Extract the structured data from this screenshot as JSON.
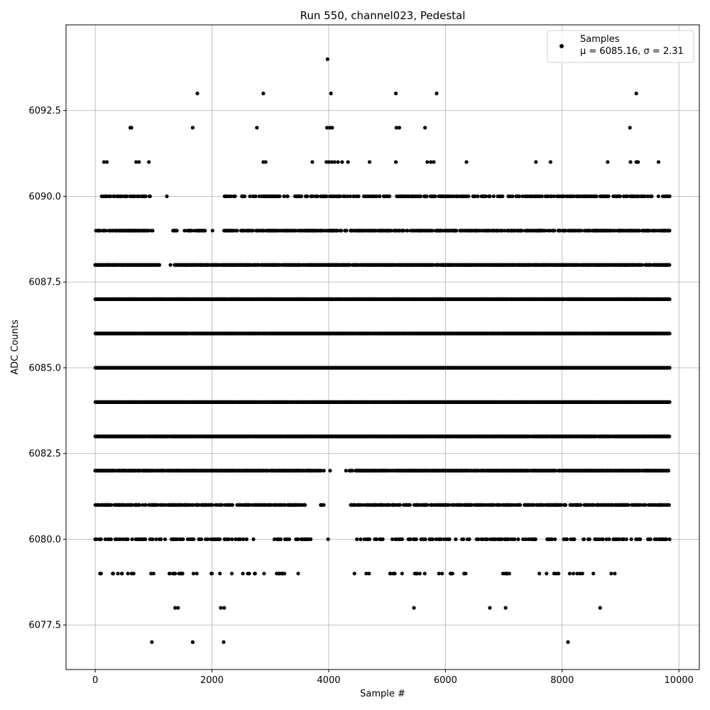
{
  "chart_data": {
    "type": "scatter",
    "title": "Run 550, channel023, Pedestal",
    "xlabel": "Sample #",
    "ylabel": "ADC Counts",
    "xlim": [
      -500,
      10350
    ],
    "ylim": [
      6076.2,
      6095.0
    ],
    "grid": true,
    "legend_position": "top-right",
    "x_ticks": [
      "0",
      "2000",
      "4000",
      "6000",
      "8000",
      "10000"
    ],
    "y_ticks": [
      "6077.5",
      "6080.0",
      "6082.5",
      "6085.0",
      "6087.5",
      "6090.0",
      "6092.5"
    ],
    "marker_color": "#000000",
    "series": [
      {
        "name": "Samples",
        "legend_line2": "μ = 6085.16, σ = 2.31",
        "mean": 6085.16,
        "std": 2.31,
        "x_range": [
          0,
          9840
        ],
        "points": [
          [
            3980,
            6094
          ],
          [
            1750,
            6093
          ],
          [
            2880,
            6093
          ],
          [
            4040,
            6093
          ],
          [
            5150,
            6093
          ],
          [
            5850,
            6093
          ],
          [
            9270,
            6093
          ],
          [
            600,
            6092
          ],
          [
            620,
            6092
          ],
          [
            1670,
            6092
          ],
          [
            2770,
            6092
          ],
          [
            3970,
            6092
          ],
          [
            4020,
            6092
          ],
          [
            4060,
            6092
          ],
          [
            5160,
            6092
          ],
          [
            5210,
            6092
          ],
          [
            5650,
            6092
          ],
          [
            9160,
            6092
          ],
          [
            150,
            6091
          ],
          [
            200,
            6091
          ],
          [
            700,
            6091
          ],
          [
            750,
            6091
          ],
          [
            920,
            6091
          ],
          [
            2880,
            6091
          ],
          [
            2920,
            6091
          ],
          [
            3720,
            6091
          ],
          [
            3960,
            6091
          ],
          [
            4000,
            6091
          ],
          [
            4050,
            6091
          ],
          [
            4100,
            6091
          ],
          [
            4160,
            6091
          ],
          [
            4230,
            6091
          ],
          [
            4330,
            6091
          ],
          [
            4700,
            6091
          ],
          [
            5150,
            6091
          ],
          [
            5690,
            6091
          ],
          [
            5750,
            6091
          ],
          [
            5800,
            6091
          ],
          [
            6360,
            6091
          ],
          [
            7550,
            6091
          ],
          [
            7800,
            6091
          ],
          [
            8780,
            6091
          ],
          [
            9170,
            6091
          ],
          [
            9270,
            6091
          ],
          [
            9300,
            6091
          ],
          [
            9650,
            6091
          ],
          [
            970,
            6077
          ],
          [
            1670,
            6077
          ],
          [
            2200,
            6077
          ],
          [
            8100,
            6077
          ],
          [
            1370,
            6078
          ],
          [
            1420,
            6078
          ],
          [
            2150,
            6078
          ],
          [
            2210,
            6078
          ],
          [
            5460,
            6078
          ],
          [
            6760,
            6078
          ],
          [
            7030,
            6078
          ],
          [
            8650,
            6078
          ]
        ],
        "dense_levels": [
          {
            "y": 6090,
            "density": 0.35,
            "x_from": 100,
            "x_to": 9840,
            "gaps": [
              [
                1000,
                2200
              ]
            ]
          },
          {
            "y": 6089,
            "density": 0.55,
            "x_from": 0,
            "x_to": 9840,
            "gaps": [
              [
                1000,
                1300
              ],
              [
                1400,
                1600
              ],
              [
                1900,
                2200
              ]
            ]
          },
          {
            "y": 6088,
            "density": 0.75,
            "x_from": 0,
            "x_to": 9840,
            "gaps": [
              [
                1100,
                1350
              ]
            ]
          },
          {
            "y": 6087,
            "density": 0.92,
            "x_from": 0,
            "x_to": 9840,
            "gaps": []
          },
          {
            "y": 6086,
            "density": 0.98,
            "x_from": 0,
            "x_to": 9840,
            "gaps": []
          },
          {
            "y": 6085,
            "density": 1.0,
            "x_from": 0,
            "x_to": 9840,
            "gaps": []
          },
          {
            "y": 6084,
            "density": 0.98,
            "x_from": 0,
            "x_to": 9840,
            "gaps": []
          },
          {
            "y": 6083,
            "density": 0.92,
            "x_from": 0,
            "x_to": 9840,
            "gaps": []
          },
          {
            "y": 6082,
            "density": 0.7,
            "x_from": 0,
            "x_to": 9840,
            "gaps": [
              [
                3900,
                4350
              ]
            ]
          },
          {
            "y": 6081,
            "density": 0.5,
            "x_from": 0,
            "x_to": 9840,
            "gaps": [
              [
                3950,
                4350
              ],
              [
                3600,
                3850
              ]
            ]
          },
          {
            "y": 6080,
            "density": 0.25,
            "x_from": 0,
            "x_to": 9840,
            "gaps": [
              [
                2750,
                3050
              ],
              [
                3700,
                4450
              ]
            ]
          },
          {
            "y": 6079,
            "density": 0.09,
            "x_from": 0,
            "x_to": 9000,
            "gaps": [
              [
                3500,
                4400
              ],
              [
                6600,
                6850
              ],
              [
                7100,
                7550
              ]
            ]
          }
        ]
      }
    ]
  }
}
